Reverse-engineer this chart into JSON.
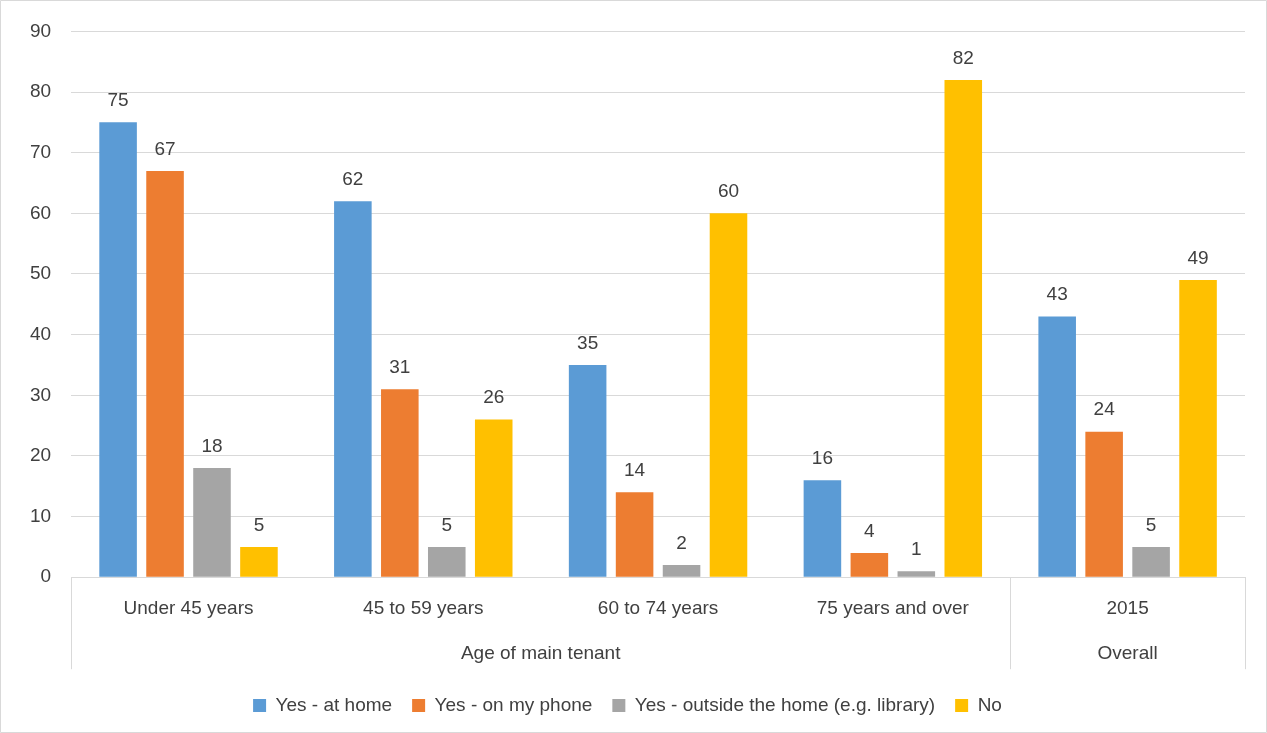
{
  "chart_data": {
    "type": "bar",
    "categories": [
      "Under 45 years",
      "45 to 59 years",
      "60 to 74 years",
      "75 years and over",
      "2015"
    ],
    "series": [
      {
        "name": "Yes - at home",
        "color": "#5b9bd5",
        "values": [
          75,
          62,
          35,
          16,
          43
        ]
      },
      {
        "name": "Yes - on my phone",
        "color": "#ed7d31",
        "values": [
          67,
          31,
          14,
          4,
          24
        ]
      },
      {
        "name": "Yes - outside the home (e.g. library)",
        "color": "#a5a5a5",
        "values": [
          18,
          5,
          2,
          1,
          5
        ]
      },
      {
        "name": "No",
        "color": "#ffc000",
        "values": [
          5,
          26,
          60,
          82,
          49
        ]
      }
    ],
    "annotations": [
      "Age of main tenant",
      "Overall"
    ],
    "ylim": [
      0,
      90
    ],
    "yticks": [
      0,
      10,
      20,
      30,
      40,
      50,
      60,
      70,
      80,
      90
    ],
    "grid": "y",
    "legend": "bottom",
    "data_labels": true
  }
}
